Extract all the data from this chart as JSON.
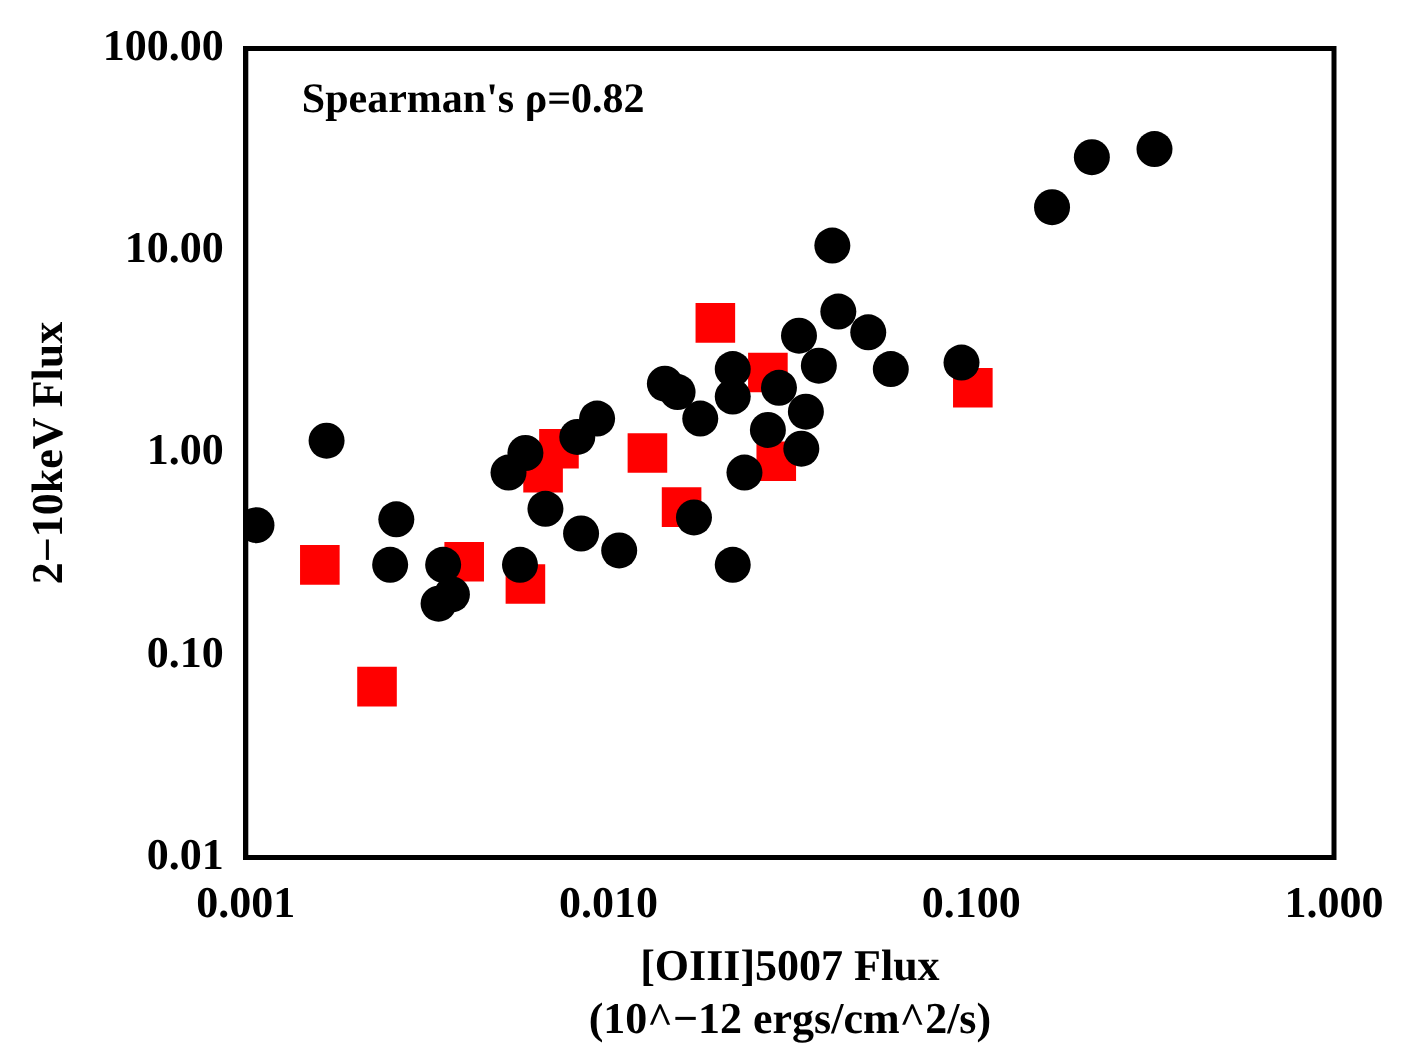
{
  "chart_data": {
    "type": "scatter",
    "xlabel": "[OIII]5007 Flux\n(10^−12 ergs/cm^2/s)",
    "ylabel": "2−10keV Flux",
    "annotations": [
      "Spearman's ρ=0.82"
    ],
    "log": "xy",
    "grid": false,
    "legend": false,
    "xlim": [
      0.001,
      1
    ],
    "ylim": [
      0.01,
      100
    ],
    "xticks": [
      {
        "value": 0.001,
        "label": "0.001"
      },
      {
        "value": 0.01,
        "label": "0.010"
      },
      {
        "value": 0.1,
        "label": "0.100"
      },
      {
        "value": 1,
        "label": "1.000"
      }
    ],
    "yticks": [
      {
        "value": 0.01,
        "label": "0.01"
      },
      {
        "value": 0.1,
        "label": "0.10"
      },
      {
        "value": 1,
        "label": "1.00"
      },
      {
        "value": 10,
        "label": "10.00"
      },
      {
        "value": 100,
        "label": "100.00"
      }
    ],
    "series": [
      {
        "color": "#000000",
        "marker": "circle",
        "x": [
          0.00107,
          0.00167,
          0.0026,
          0.0025,
          0.0035,
          0.0034,
          0.0037,
          0.0057,
          0.0053,
          0.0059,
          0.0067,
          0.0084,
          0.0082,
          0.0093,
          0.0107,
          0.0143,
          0.0155,
          0.0179,
          0.0172,
          0.022,
          0.0237,
          0.022,
          0.022,
          0.0295,
          0.0275,
          0.034,
          0.0414,
          0.0335,
          0.038,
          0.043,
          0.052,
          0.06,
          0.094,
          0.167,
          0.215,
          0.32,
          0.035
        ],
        "values": [
          0.44,
          1.15,
          0.47,
          0.28,
          0.28,
          0.18,
          0.2,
          0.28,
          0.8,
          1.0,
          0.53,
          0.4,
          1.2,
          1.48,
          0.33,
          2.2,
          2.0,
          1.48,
          0.48,
          0.28,
          0.8,
          2.6,
          1.9,
          2.1,
          1.3,
          1.05,
          10.6,
          3.8,
          2.7,
          5.0,
          3.95,
          2.6,
          2.8,
          16.4,
          29,
          31.8,
          1.6
        ]
      },
      {
        "color": "#ff0000",
        "marker": "square",
        "x": [
          0.0016,
          0.0023,
          0.004,
          0.0059,
          0.0066,
          0.0073,
          0.0128,
          0.0159,
          0.0197,
          0.0275,
          0.029,
          0.101
        ],
        "values": [
          0.28,
          0.07,
          0.29,
          0.225,
          0.8,
          1.05,
          1.0,
          0.54,
          4.4,
          2.5,
          0.91,
          2.1
        ]
      }
    ]
  }
}
